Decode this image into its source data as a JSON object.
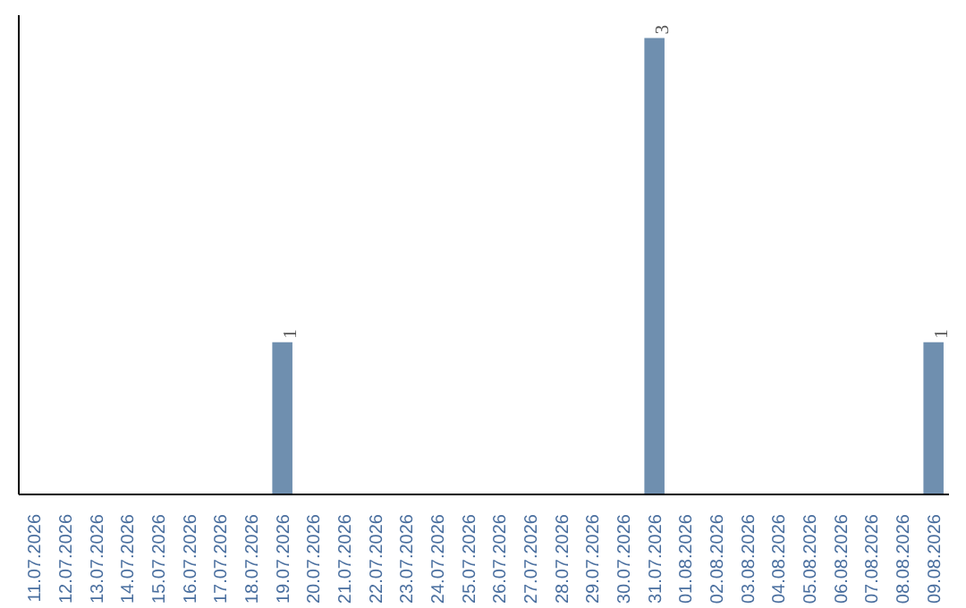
{
  "chart_data": {
    "type": "bar",
    "categories": [
      "11.07.2026",
      "12.07.2026",
      "13.07.2026",
      "14.07.2026",
      "15.07.2026",
      "16.07.2026",
      "17.07.2026",
      "18.07.2026",
      "19.07.2026",
      "20.07.2026",
      "21.07.2026",
      "22.07.2026",
      "23.07.2026",
      "24.07.2026",
      "25.07.2026",
      "26.07.2026",
      "27.07.2026",
      "28.07.2026",
      "29.07.2026",
      "30.07.2026",
      "31.07.2026",
      "01.08.2026",
      "02.08.2026",
      "03.08.2026",
      "04.08.2026",
      "05.08.2026",
      "06.08.2026",
      "07.08.2026",
      "08.08.2026",
      "09.08.2026"
    ],
    "values": [
      0,
      0,
      0,
      0,
      0,
      0,
      0,
      0,
      1,
      0,
      0,
      0,
      0,
      0,
      0,
      0,
      0,
      0,
      0,
      0,
      3,
      0,
      0,
      0,
      0,
      0,
      0,
      0,
      0,
      1
    ],
    "value_labels": [
      null,
      null,
      null,
      null,
      null,
      null,
      null,
      null,
      "1",
      null,
      null,
      null,
      null,
      null,
      null,
      null,
      null,
      null,
      null,
      null,
      "3",
      null,
      null,
      null,
      null,
      null,
      null,
      null,
      null,
      "1"
    ],
    "color": "#6f8faf",
    "ylim": [
      0,
      3.15
    ],
    "tick_labels": "x",
    "grid": false
  }
}
